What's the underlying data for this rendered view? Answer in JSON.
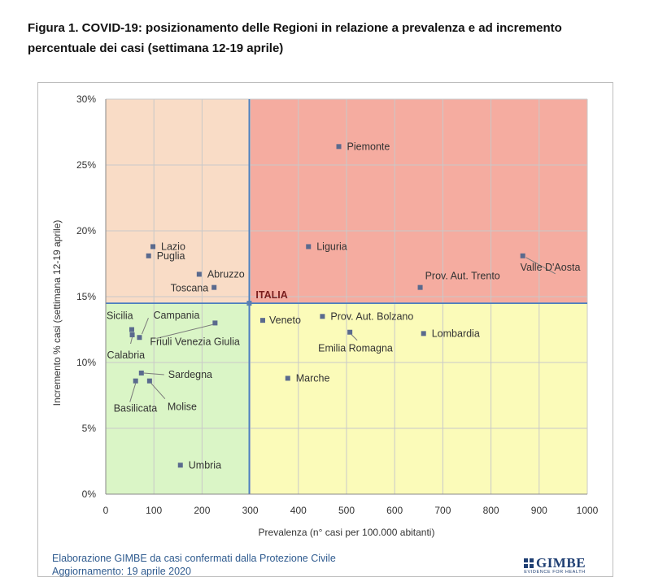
{
  "figure": {
    "title": "Figura 1. COVID-19: posizionamento delle Regioni in relazione a prevalenza e ad incremento percentuale dei casi (settimana 12-19 aprile)"
  },
  "footer": {
    "line1": "Elaborazione GIMBE da casi confermati dalla Protezione Civile",
    "line2": "Aggiornamento: 19 aprile 2020"
  },
  "logo": {
    "name": "GIMBE",
    "tagline": "EVIDENCE FOR HEALTH",
    "icon": "gimbe-grid-icon"
  },
  "chart_data": {
    "type": "scatter",
    "title": "",
    "xlabel": "Prevalenza  (n° casi per 100.000 abitanti)",
    "ylabel": "Incremento %  casi (settimana 12-19 aprile)",
    "xlim": [
      0,
      1000
    ],
    "ylim": [
      0,
      30
    ],
    "xticks": [
      0,
      100,
      200,
      300,
      400,
      500,
      600,
      700,
      800,
      900,
      1000
    ],
    "yticks": [
      0,
      5,
      10,
      15,
      20,
      25,
      30
    ],
    "ytick_labels": [
      "0%",
      "5%",
      "10%",
      "15%",
      "20%",
      "25%",
      "30%"
    ],
    "grid": true,
    "legend": "none",
    "reference": {
      "label": "ITALIA",
      "x": 298,
      "y": 14.5
    },
    "quadrant_colors": {
      "top_left": "#f9dcc6",
      "top_right": "#f5aca0",
      "bottom_left": "#daf5c6",
      "bottom_right": "#fbfbb9"
    },
    "marker_color": "#5a6a8e",
    "divider_color": "#4a7ebf",
    "points": [
      {
        "name": "Piemonte",
        "x": 484,
        "y": 26.4
      },
      {
        "name": "Lazio",
        "x": 98,
        "y": 18.8
      },
      {
        "name": "Puglia",
        "x": 89,
        "y": 18.1
      },
      {
        "name": "Liguria",
        "x": 421,
        "y": 18.8
      },
      {
        "name": "Valle D'Aosta",
        "x": 866,
        "y": 18.1
      },
      {
        "name": "Abruzzo",
        "x": 194,
        "y": 16.7
      },
      {
        "name": "Toscana",
        "x": 225,
        "y": 15.7
      },
      {
        "name": "Prov. Aut. Trento",
        "x": 653,
        "y": 15.7
      },
      {
        "name": "Veneto",
        "x": 326,
        "y": 13.2
      },
      {
        "name": "Prov. Aut. Bolzano",
        "x": 450,
        "y": 13.5
      },
      {
        "name": "Emilia Romagna",
        "x": 507,
        "y": 12.3
      },
      {
        "name": "Lombardia",
        "x": 660,
        "y": 12.2
      },
      {
        "name": "Sicilia",
        "x": 54,
        "y": 12.5
      },
      {
        "name": "Calabria",
        "x": 55,
        "y": 12.1
      },
      {
        "name": "Campania",
        "x": 70,
        "y": 11.9
      },
      {
        "name": "Friuli Venezia Giulia",
        "x": 227,
        "y": 13.0
      },
      {
        "name": "Sardegna",
        "x": 74,
        "y": 9.2
      },
      {
        "name": "Basilicata",
        "x": 62,
        "y": 8.6
      },
      {
        "name": "Molise",
        "x": 91,
        "y": 8.6
      },
      {
        "name": "Marche",
        "x": 378,
        "y": 8.8
      },
      {
        "name": "Umbria",
        "x": 155,
        "y": 2.2
      }
    ]
  }
}
